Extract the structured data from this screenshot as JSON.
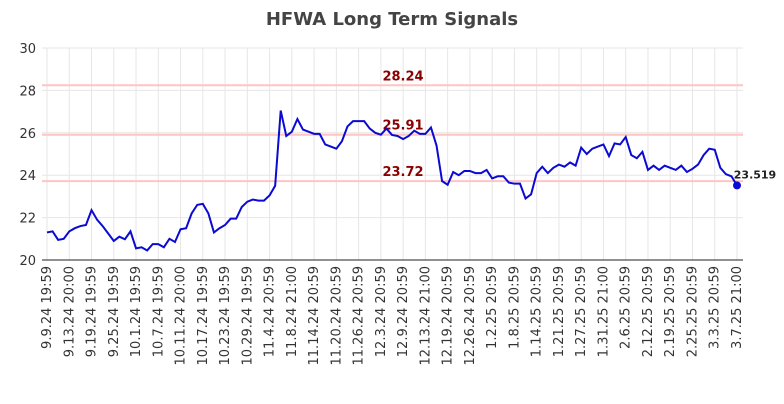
{
  "chart_data": {
    "type": "line",
    "title": "HFWA Long Term Signals",
    "categories": [
      "9.9.24 19:59",
      null,
      null,
      null,
      "9.13.24 20:00",
      null,
      null,
      null,
      "9.19.24 19:59",
      null,
      null,
      null,
      "9.25.24 19:59",
      null,
      null,
      null,
      "10.1.24 19:59",
      null,
      null,
      null,
      "10.7.24 19:59",
      null,
      null,
      null,
      "10.11.24 20:00",
      null,
      null,
      null,
      "10.17.24 19:59",
      null,
      null,
      null,
      "10.23.24 19:59",
      null,
      null,
      null,
      "10.29.24 19:59",
      null,
      null,
      null,
      "11.4.24 20:59",
      null,
      null,
      null,
      "11.8.24 21:00",
      null,
      null,
      null,
      "11.14.24 20:59",
      null,
      null,
      null,
      "11.20.24 20:59",
      null,
      null,
      null,
      "11.26.24 20:59",
      null,
      null,
      null,
      "12.3.24 20:59",
      null,
      null,
      null,
      "12.9.24 20:59",
      null,
      null,
      null,
      "12.13.24 21:00",
      null,
      null,
      null,
      "12.19.24 20:59",
      null,
      null,
      null,
      "12.26.24 20:59",
      null,
      null,
      null,
      "1.2.25 20:59",
      null,
      null,
      null,
      "1.8.25 20:59",
      null,
      null,
      null,
      "1.14.25 20:59",
      null,
      null,
      null,
      "1.21.25 20:59",
      null,
      null,
      null,
      "1.27.25 20:59",
      null,
      null,
      null,
      "1.31.25 21:00",
      null,
      null,
      null,
      "2.6.25 20:59",
      null,
      null,
      null,
      "2.12.25 20:59",
      null,
      null,
      null,
      "2.19.25 20:59",
      null,
      null,
      null,
      "2.25.25 20:59",
      null,
      null,
      null,
      "3.3.25 20:59",
      null,
      null,
      null,
      "3.7.25 21:00"
    ],
    "series": [
      {
        "color": "#0a0ad2",
        "values": [
          21.3,
          21.35,
          20.95,
          21.0,
          21.35,
          21.5,
          21.6,
          21.65,
          22.35,
          21.9,
          21.6,
          21.25,
          20.9,
          21.1,
          20.98,
          21.35,
          20.55,
          20.6,
          20.45,
          20.75,
          20.75,
          20.6,
          21.0,
          20.85,
          21.45,
          21.5,
          22.2,
          22.6,
          22.65,
          22.2,
          21.3,
          21.5,
          21.65,
          21.95,
          21.95,
          22.5,
          22.75,
          22.85,
          22.8,
          22.8,
          23.05,
          23.5,
          27.05,
          25.85,
          26.05,
          26.65,
          26.15,
          26.05,
          25.95,
          25.95,
          25.45,
          25.35,
          25.25,
          25.6,
          26.3,
          26.55,
          26.55,
          26.55,
          26.2,
          26.0,
          25.91,
          26.2,
          25.9,
          25.85,
          25.7,
          25.85,
          26.1,
          25.95,
          25.95,
          26.25,
          25.4,
          23.72,
          23.55,
          24.15,
          24.0,
          24.2,
          24.2,
          24.1,
          24.1,
          24.25,
          23.85,
          23.95,
          23.95,
          23.65,
          23.6,
          23.6,
          22.9,
          23.1,
          24.1,
          24.4,
          24.1,
          24.35,
          24.5,
          24.4,
          24.6,
          24.45,
          25.3,
          25.0,
          25.25,
          25.35,
          25.45,
          24.9,
          25.5,
          25.45,
          25.8,
          24.95,
          24.8,
          25.1,
          24.25,
          24.45,
          24.25,
          24.45,
          24.35,
          24.25,
          24.45,
          24.15,
          24.3,
          24.5,
          24.95,
          25.25,
          25.2,
          24.35,
          24.05,
          23.95,
          23.519
        ]
      }
    ],
    "horizontal_lines": [
      28.24,
      25.91,
      23.72
    ],
    "ylim": [
      20,
      30
    ],
    "yticks": [
      20,
      22,
      24,
      26,
      28,
      30
    ],
    "grid": true
  }
}
